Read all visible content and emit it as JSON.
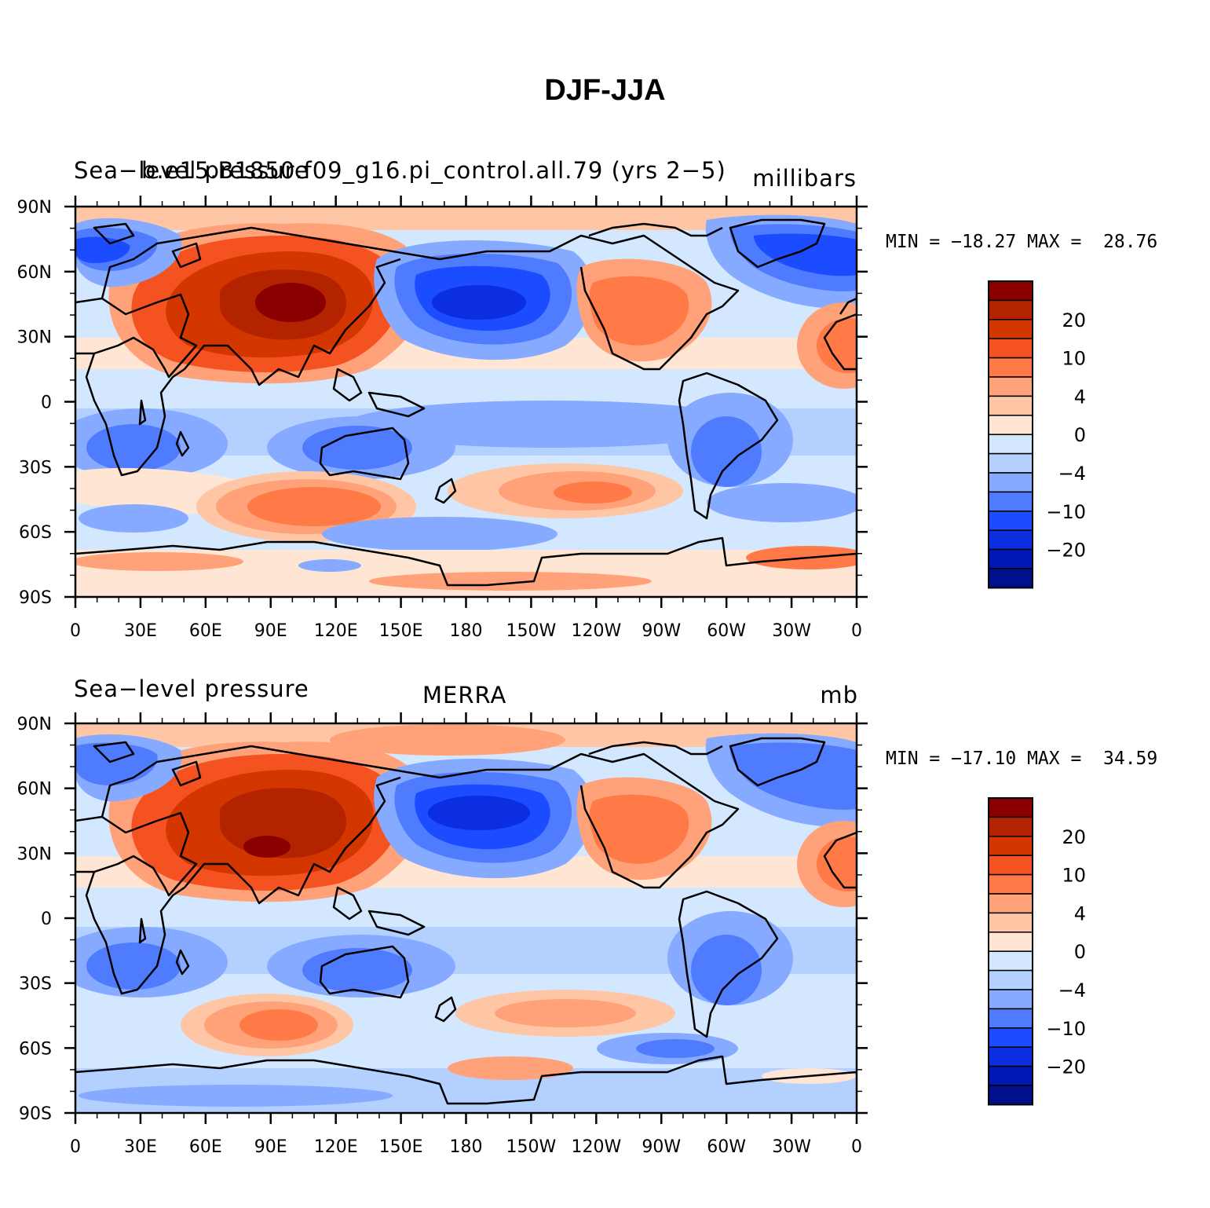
{
  "title": "DJF-JJA",
  "lat_labels": [
    "90N",
    "60N",
    "30N",
    "0",
    "30S",
    "60S",
    "90S"
  ],
  "lon_labels": [
    "0",
    "30E",
    "60E",
    "90E",
    "120E",
    "150E",
    "180",
    "150W",
    "120W",
    "90W",
    "60W",
    "30W",
    "0"
  ],
  "panels": [
    {
      "left_title": "Sea-level pressure",
      "case_name": "b.e15.B1850.f09_g16.pi_control.all.79 (yrs 2-5)",
      "units": "millibars",
      "min_label": "MIN =",
      "min": "-18.27",
      "max_label": "MAX =",
      "max": "28.76"
    },
    {
      "left_title": "Sea-level pressure",
      "case_name": "MERRA",
      "units": "mb",
      "min_label": "MIN =",
      "min": "-17.10",
      "max_label": "MAX =",
      "max": "34.59"
    }
  ],
  "colorbar": {
    "colors": [
      "#8a0000",
      "#b32300",
      "#d43600",
      "#f55222",
      "#ff7a46",
      "#ffa279",
      "#ffc6a6",
      "#ffe6d4",
      "#d3e8ff",
      "#b4d0ff",
      "#86aaff",
      "#4f7bff",
      "#1c4cff",
      "#0a2ee0",
      "#0018b4",
      "#000f8c"
    ],
    "labels": [
      "20",
      "10",
      "4",
      "0",
      "-4",
      "-10",
      "-20"
    ]
  }
}
